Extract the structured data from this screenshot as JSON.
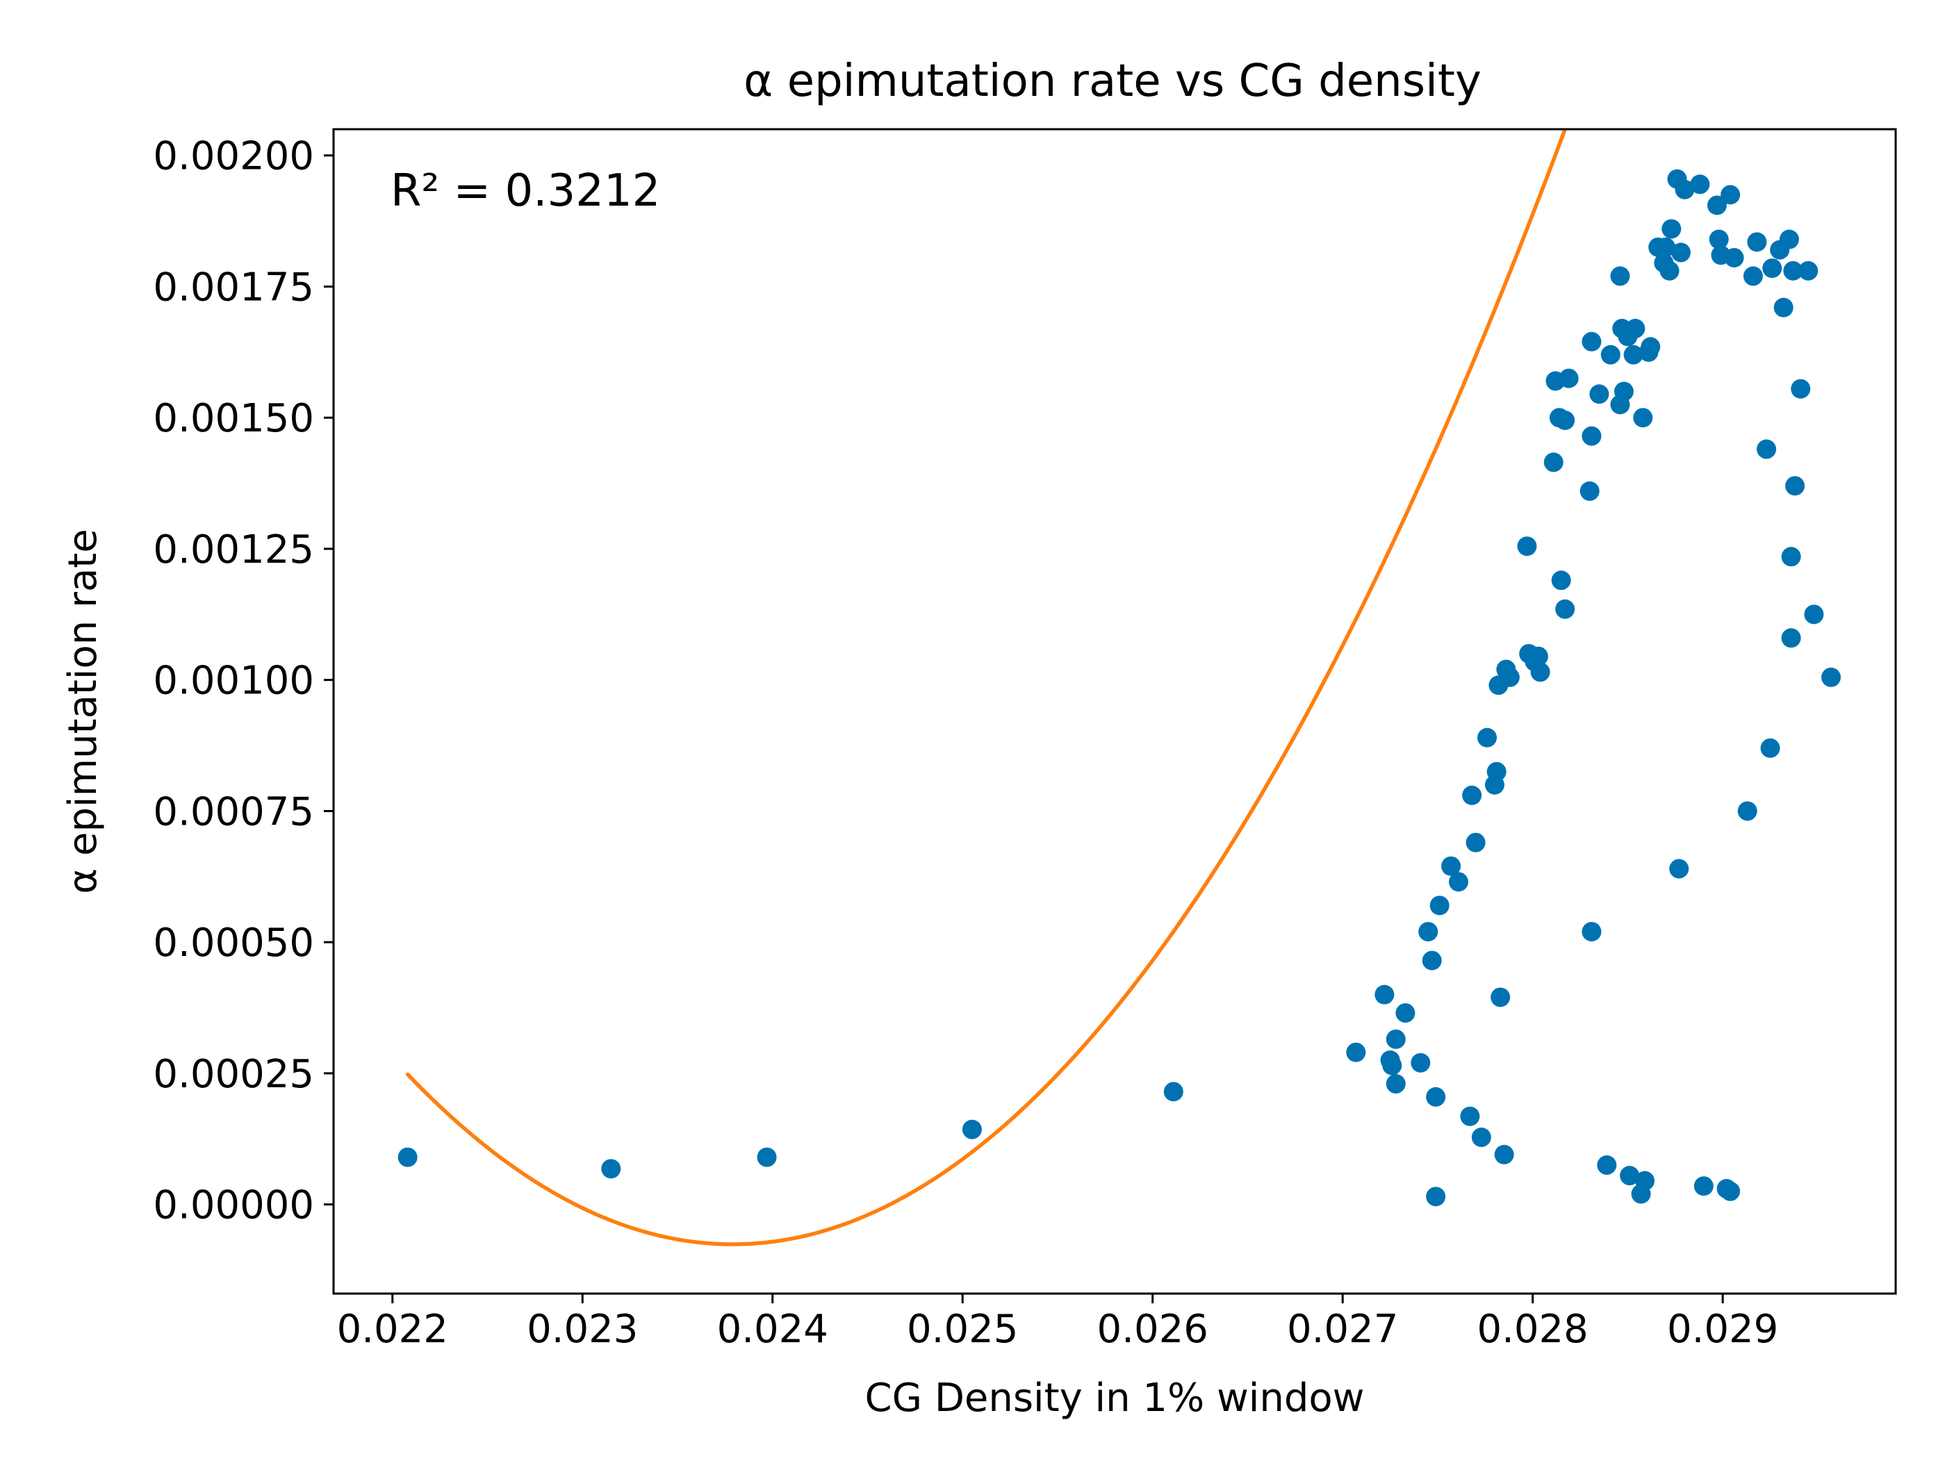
{
  "chart_data": {
    "type": "scatter",
    "title": "α epimutation rate vs CG density",
    "xlabel": "CG Density in 1% window",
    "ylabel": "α epimutation rate",
    "annotation": "R² = 0.3212",
    "xlim": [
      0.02169,
      0.02991
    ],
    "ylim": [
      -0.00017,
      0.00205
    ],
    "xticks": [
      {
        "value": 0.022,
        "label": "0.022"
      },
      {
        "value": 0.023,
        "label": "0.023"
      },
      {
        "value": 0.024,
        "label": "0.024"
      },
      {
        "value": 0.025,
        "label": "0.025"
      },
      {
        "value": 0.026,
        "label": "0.026"
      },
      {
        "value": 0.027,
        "label": "0.027"
      },
      {
        "value": 0.028,
        "label": "0.028"
      },
      {
        "value": 0.029,
        "label": "0.029"
      }
    ],
    "yticks": [
      {
        "value": 0.0,
        "label": "0.00000"
      },
      {
        "value": 0.00025,
        "label": "0.00025"
      },
      {
        "value": 0.0005,
        "label": "0.00050"
      },
      {
        "value": 0.00075,
        "label": "0.00075"
      },
      {
        "value": 0.001,
        "label": "0.00100"
      },
      {
        "value": 0.00125,
        "label": "0.00125"
      },
      {
        "value": 0.0015,
        "label": "0.00150"
      },
      {
        "value": 0.00175,
        "label": "0.00175"
      },
      {
        "value": 0.002,
        "label": "0.00200"
      }
    ],
    "colors": {
      "points": "#0072b2",
      "fit": "#ff7f0e"
    },
    "grid": false,
    "fit": {
      "type": "quadratic",
      "x_range": [
        0.02208,
        0.02958
      ],
      "vertex": [
        0.02379,
        -7.6e-05
      ],
      "a": 110.8
    },
    "points": [
      [
        0.02208,
        9e-05
      ],
      [
        0.02315,
        6.8e-05
      ],
      [
        0.02397,
        9e-05
      ],
      [
        0.02505,
        0.000143
      ],
      [
        0.02611,
        0.000215
      ],
      [
        0.02707,
        0.00029
      ],
      [
        0.02722,
        0.0004
      ],
      [
        0.02725,
        0.000275
      ],
      [
        0.02726,
        0.000265
      ],
      [
        0.02728,
        0.000315
      ],
      [
        0.02728,
        0.00023
      ],
      [
        0.02733,
        0.000365
      ],
      [
        0.02741,
        0.00027
      ],
      [
        0.02745,
        0.00052
      ],
      [
        0.02747,
        0.000465
      ],
      [
        0.02749,
        0.000205
      ],
      [
        0.02749,
        1.5e-05
      ],
      [
        0.02751,
        0.00057
      ],
      [
        0.02757,
        0.000645
      ],
      [
        0.02761,
        0.000615
      ],
      [
        0.02767,
        0.000168
      ],
      [
        0.02768,
        0.00078
      ],
      [
        0.0277,
        0.00069
      ],
      [
        0.02773,
        0.000128
      ],
      [
        0.02776,
        0.00089
      ],
      [
        0.0278,
        0.0008
      ],
      [
        0.02781,
        0.000825
      ],
      [
        0.02782,
        0.00099
      ],
      [
        0.02783,
        0.000395
      ],
      [
        0.02785,
        9.5e-05
      ],
      [
        0.02786,
        0.00102
      ],
      [
        0.02788,
        0.001005
      ],
      [
        0.02797,
        0.001255
      ],
      [
        0.02798,
        0.00105
      ],
      [
        0.02801,
        0.001035
      ],
      [
        0.02803,
        0.001045
      ],
      [
        0.02804,
        0.001015
      ],
      [
        0.02811,
        0.001415
      ],
      [
        0.02812,
        0.00157
      ],
      [
        0.02814,
        0.0015
      ],
      [
        0.02815,
        0.00119
      ],
      [
        0.02817,
        0.001495
      ],
      [
        0.02817,
        0.001135
      ],
      [
        0.02819,
        0.001575
      ],
      [
        0.0283,
        0.00136
      ],
      [
        0.02831,
        0.001645
      ],
      [
        0.02831,
        0.001465
      ],
      [
        0.02831,
        0.00052
      ],
      [
        0.02835,
        0.001545
      ],
      [
        0.02839,
        7.5e-05
      ],
      [
        0.02841,
        0.00162
      ],
      [
        0.02846,
        0.001525
      ],
      [
        0.02846,
        0.00177
      ],
      [
        0.02847,
        0.00167
      ],
      [
        0.02848,
        0.00155
      ],
      [
        0.0285,
        0.001655
      ],
      [
        0.02851,
        5.5e-05
      ],
      [
        0.02853,
        0.00162
      ],
      [
        0.02854,
        0.00167
      ],
      [
        0.02857,
        2e-05
      ],
      [
        0.02858,
        0.0015
      ],
      [
        0.02859,
        4.5e-05
      ],
      [
        0.02861,
        0.001625
      ],
      [
        0.02862,
        0.001635
      ],
      [
        0.02866,
        0.001825
      ],
      [
        0.02869,
        0.001795
      ],
      [
        0.0287,
        0.001825
      ],
      [
        0.02872,
        0.00178
      ],
      [
        0.02873,
        0.00186
      ],
      [
        0.02876,
        0.001955
      ],
      [
        0.02877,
        0.00064
      ],
      [
        0.02878,
        0.001815
      ],
      [
        0.0288,
        0.001935
      ],
      [
        0.02888,
        0.001945
      ],
      [
        0.0289,
        3.5e-05
      ],
      [
        0.02897,
        0.001905
      ],
      [
        0.02898,
        0.00184
      ],
      [
        0.02899,
        0.00181
      ],
      [
        0.02902,
        3e-05
      ],
      [
        0.02904,
        0.001925
      ],
      [
        0.02904,
        2.5e-05
      ],
      [
        0.02906,
        0.001805
      ],
      [
        0.02913,
        0.00075
      ],
      [
        0.02916,
        0.00177
      ],
      [
        0.02918,
        0.001835
      ],
      [
        0.02923,
        0.00144
      ],
      [
        0.02925,
        0.00087
      ],
      [
        0.02926,
        0.001785
      ],
      [
        0.0293,
        0.00182
      ],
      [
        0.02932,
        0.00171
      ],
      [
        0.02935,
        0.00184
      ],
      [
        0.02936,
        0.00108
      ],
      [
        0.02936,
        0.001235
      ],
      [
        0.02937,
        0.00178
      ],
      [
        0.02938,
        0.00137
      ],
      [
        0.02941,
        0.001555
      ],
      [
        0.02945,
        0.00178
      ],
      [
        0.02948,
        0.001125
      ],
      [
        0.02957,
        0.001005
      ]
    ]
  }
}
